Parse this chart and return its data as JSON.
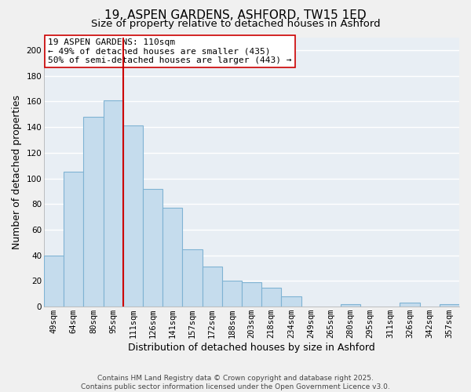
{
  "title": "19, ASPEN GARDENS, ASHFORD, TW15 1ED",
  "subtitle": "Size of property relative to detached houses in Ashford",
  "xlabel": "Distribution of detached houses by size in Ashford",
  "ylabel": "Number of detached properties",
  "categories": [
    "49sqm",
    "64sqm",
    "80sqm",
    "95sqm",
    "111sqm",
    "126sqm",
    "141sqm",
    "157sqm",
    "172sqm",
    "188sqm",
    "203sqm",
    "218sqm",
    "234sqm",
    "249sqm",
    "265sqm",
    "280sqm",
    "295sqm",
    "311sqm",
    "326sqm",
    "342sqm",
    "357sqm"
  ],
  "values": [
    40,
    105,
    148,
    161,
    141,
    92,
    77,
    45,
    31,
    20,
    19,
    15,
    8,
    0,
    0,
    2,
    0,
    0,
    3,
    0,
    2
  ],
  "bar_color": "#c5dced",
  "bar_edge_color": "#7fb3d3",
  "vline_x_index": 4,
  "vline_color": "#cc0000",
  "annotation_lines": [
    "19 ASPEN GARDENS: 110sqm",
    "← 49% of detached houses are smaller (435)",
    "50% of semi-detached houses are larger (443) →"
  ],
  "ylim": [
    0,
    210
  ],
  "yticks": [
    0,
    20,
    40,
    60,
    80,
    100,
    120,
    140,
    160,
    180,
    200
  ],
  "footer_lines": [
    "Contains HM Land Registry data © Crown copyright and database right 2025.",
    "Contains public sector information licensed under the Open Government Licence v3.0."
  ],
  "bg_color": "#f0f0f0",
  "plot_bg_color": "#e8eef4",
  "grid_color": "#ffffff",
  "title_fontsize": 11,
  "subtitle_fontsize": 9.5,
  "axis_label_fontsize": 9,
  "tick_fontsize": 7.5,
  "annotation_fontsize": 8,
  "footer_fontsize": 6.5
}
